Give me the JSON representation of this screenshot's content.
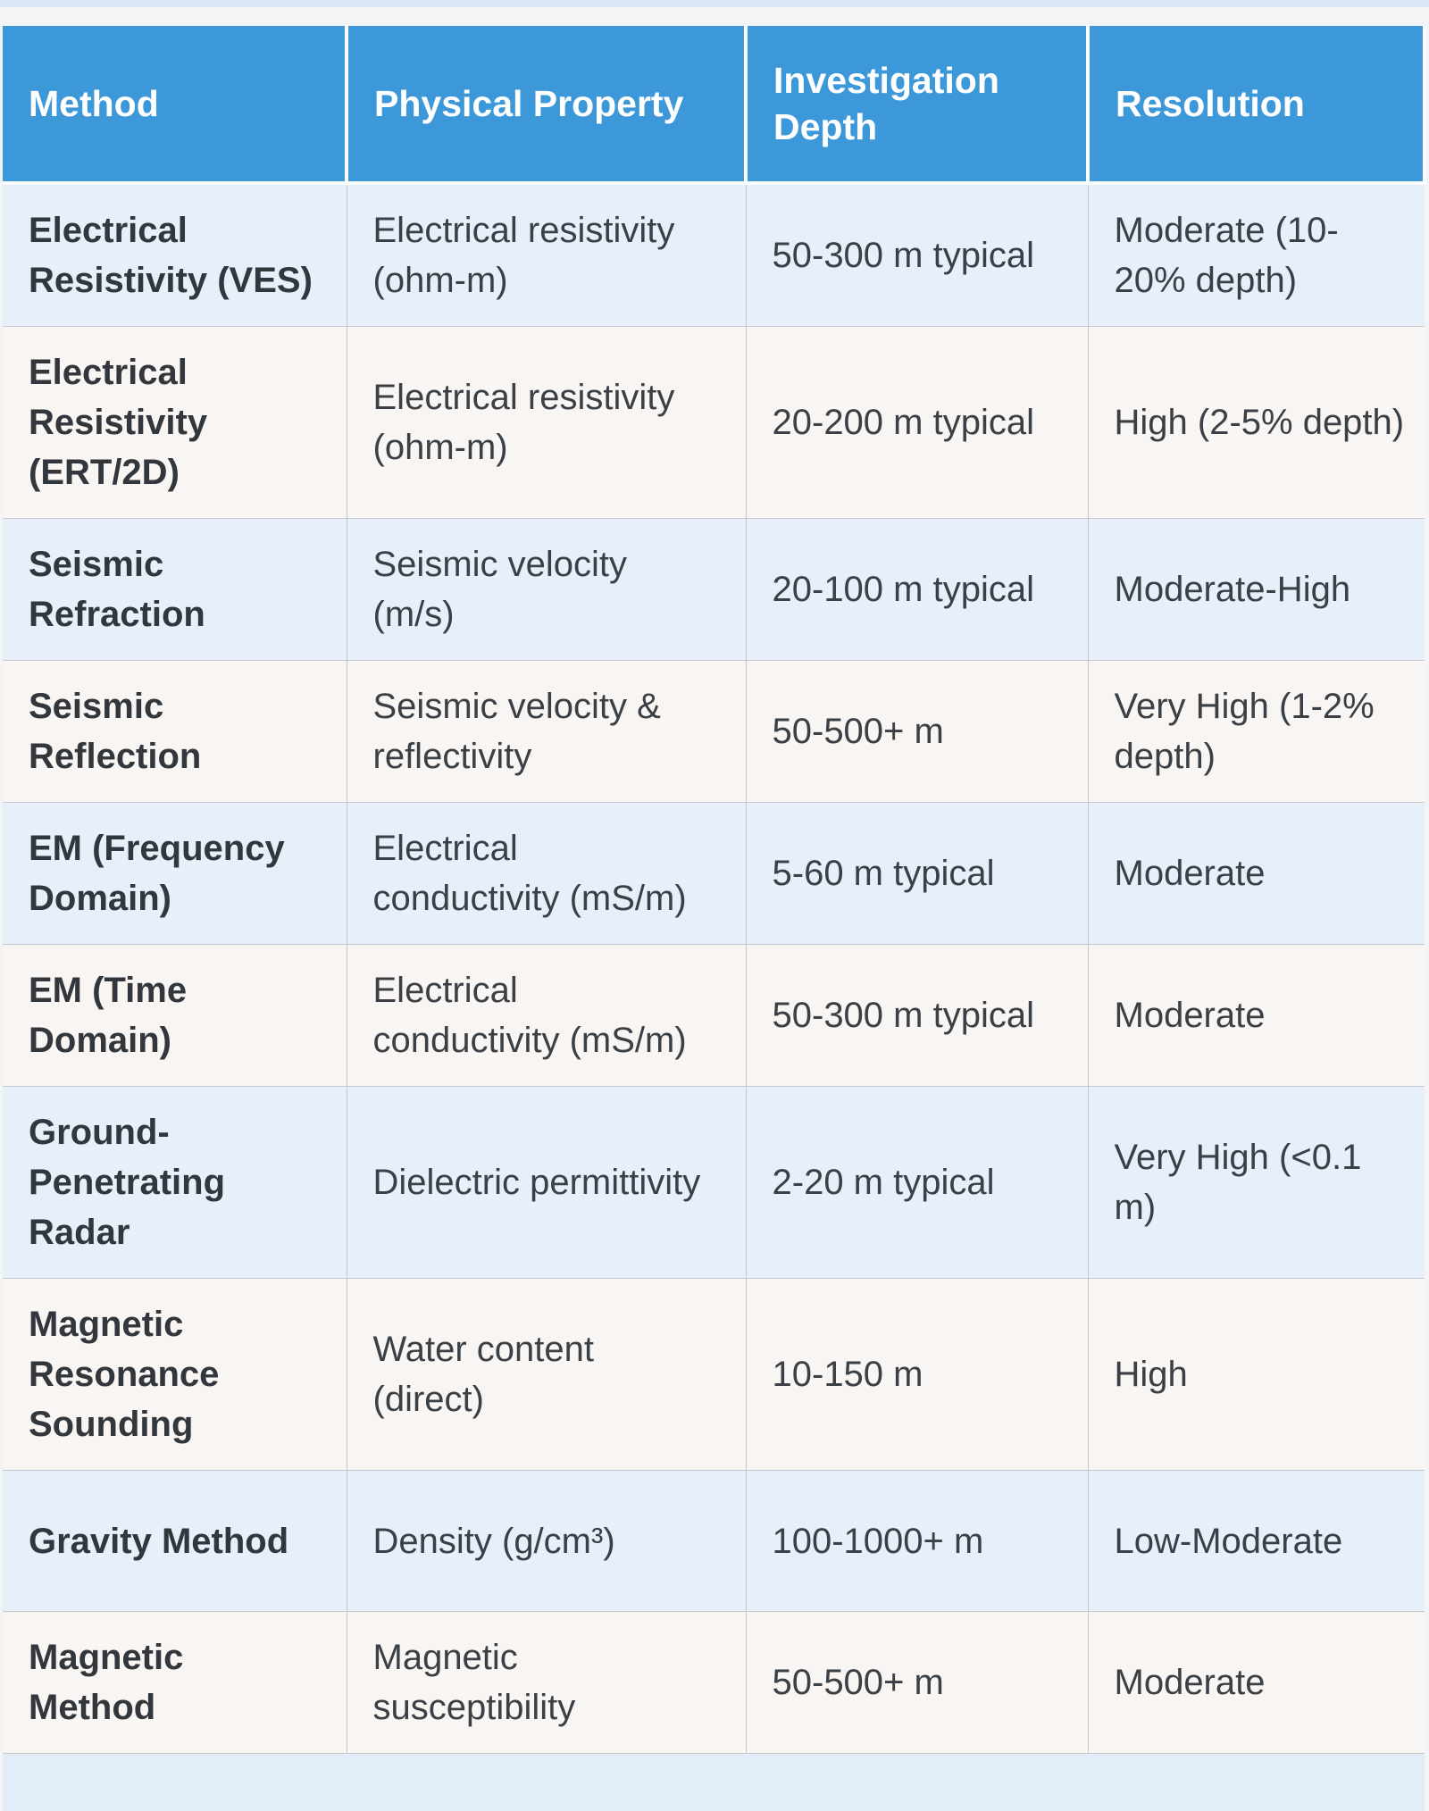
{
  "colors": {
    "header_bg": "#3D98D9",
    "header_text": "#FFFFFF",
    "row_blue_bg": "#E7F0FA",
    "row_warm_bg": "#F9F5F2",
    "partial_row_bg": "#E3EDF9",
    "grid_line": "#C4C8CB",
    "page_bg": "#F3F4F5",
    "top_strip": "#DCE8F6",
    "body_text": "#3A4046",
    "method_text": "#31373C",
    "gap_white": "#FBFCFD"
  },
  "chart_data": {
    "type": "table",
    "title": "",
    "columns": [
      "Method",
      "Physical Property",
      "Investigation Depth",
      "Resolution"
    ],
    "rows": [
      {
        "method": "Electrical Resistivity (VES)",
        "property": "Electrical resistivity (ohm-m)",
        "depth": "50-300 m typical",
        "resolution": "Moderate (10-20% depth)"
      },
      {
        "method": "Electrical Resistivity (ERT/2D)",
        "property": "Electrical resistivity (ohm-m)",
        "depth": "20-200 m typical",
        "resolution": "High (2-5% depth)"
      },
      {
        "method": "Seismic Refraction",
        "property": "Seismic velocity (m/s)",
        "depth": "20-100 m typical",
        "resolution": "Moderate-High"
      },
      {
        "method": "Seismic Reflection",
        "property": "Seismic velocity & reflectivity",
        "depth": "50-500+ m",
        "resolution": "Very High (1-2% depth)"
      },
      {
        "method": "EM (Frequency Domain)",
        "property": "Electrical conductivity (mS/m)",
        "depth": "5-60 m typical",
        "resolution": "Moderate"
      },
      {
        "method": "EM (Time Domain)",
        "property": "Electrical conductivity (mS/m)",
        "depth": "50-300 m typical",
        "resolution": "Moderate"
      },
      {
        "method": "Ground-Penetrating Radar",
        "property": "Dielectric permittivity",
        "depth": "2-20 m typical",
        "resolution": "Very High (<0.1 m)"
      },
      {
        "method": "Magnetic Resonance Sounding",
        "property": "Water content (direct)",
        "depth": "10-150 m",
        "resolution": "High"
      },
      {
        "method": "Gravity Method",
        "property": "Density (g/cm³)",
        "depth": "100-1000+ m",
        "resolution": "Low-Moderate"
      },
      {
        "method": "Magnetic Method",
        "property": "Magnetic susceptibility",
        "depth": "50-500+ m",
        "resolution": "Moderate"
      }
    ]
  }
}
